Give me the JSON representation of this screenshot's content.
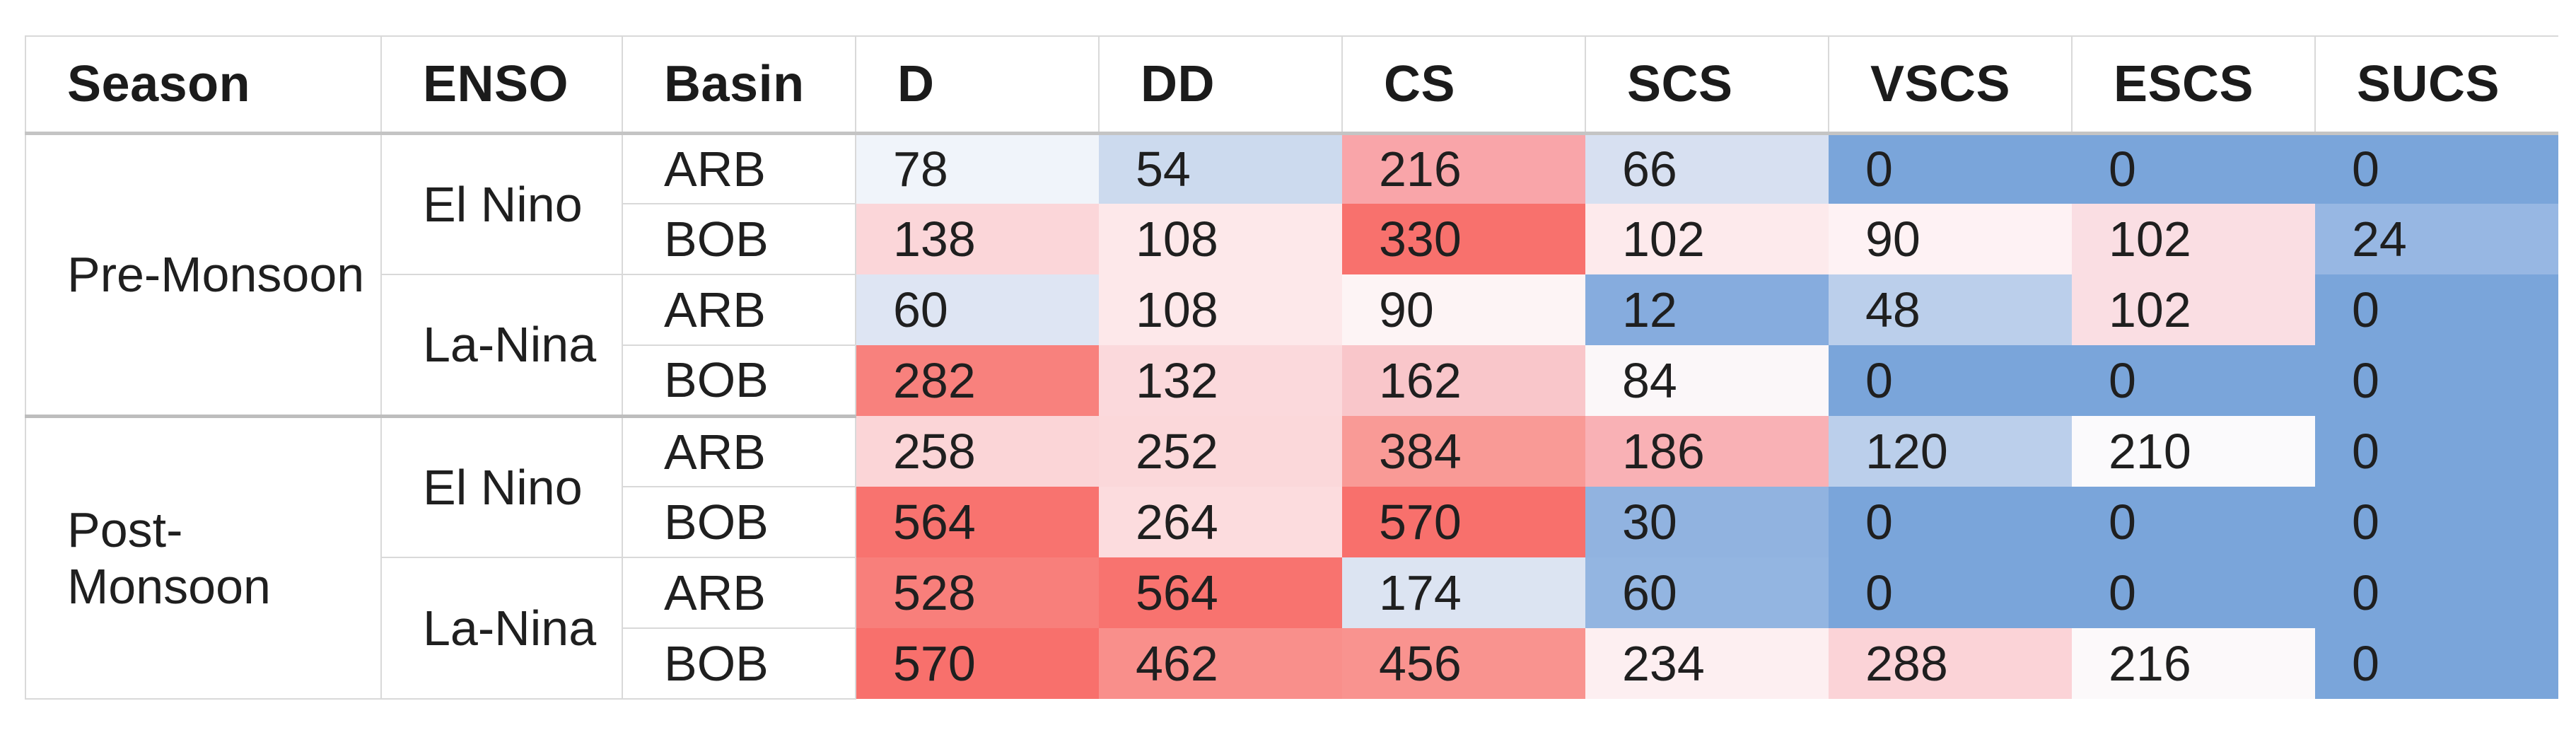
{
  "chart_data": {
    "type": "heatmap",
    "title": "",
    "columns": [
      "Season",
      "ENSO",
      "Basin",
      "D",
      "DD",
      "CS",
      "SCS",
      "VSCS",
      "ESCS",
      "SUCS"
    ],
    "rows": [
      {
        "season": "Pre-Monsoon",
        "season_span": 4,
        "enso": "El Nino",
        "enso_span": 2,
        "basin": "ARB",
        "values": [
          78,
          54,
          216,
          66,
          0,
          0,
          0
        ],
        "cell_colors": [
          "#f0f4fa",
          "#ccdaee",
          "#f9a5a9",
          "#d7e0f1",
          "#7aa5da",
          "#7aa5da",
          "#7aa5da"
        ]
      },
      {
        "basin": "BOB",
        "values": [
          138,
          108,
          330,
          102,
          90,
          102,
          24
        ],
        "cell_colors": [
          "#fbd6d9",
          "#fde8ea",
          "#f8716d",
          "#fdeaec",
          "#fef2f4",
          "#fadee3",
          "#97b7e3"
        ]
      },
      {
        "enso": "La-Nina",
        "enso_span": 2,
        "basin": "ARB",
        "values": [
          60,
          108,
          90,
          12,
          48,
          102,
          0
        ],
        "cell_colors": [
          "#dee5f3",
          "#fde8ea",
          "#fdf4f5",
          "#86acde",
          "#bbcfeb",
          "#fadee3",
          "#7aa5da"
        ]
      },
      {
        "basin": "BOB",
        "values": [
          282,
          132,
          162,
          84,
          0,
          0,
          0
        ],
        "cell_colors": [
          "#f8817d",
          "#fbd9dc",
          "#f9c6ca",
          "#fbf7f9",
          "#7aa5da",
          "#7aa5da",
          "#7aa5da"
        ]
      },
      {
        "season": "Post-Monsoon",
        "season_span": 4,
        "enso": "El Nino",
        "enso_span": 2,
        "basin": "ARB",
        "group_start": true,
        "values": [
          258,
          252,
          384,
          186,
          120,
          210,
          0
        ],
        "cell_colors": [
          "#fbd5d7",
          "#fbd8da",
          "#f99a96",
          "#f9b1b5",
          "#bbcfeb",
          "#fbfafc",
          "#7aa5da"
        ]
      },
      {
        "basin": "BOB",
        "values": [
          564,
          264,
          570,
          30,
          0,
          0,
          0
        ],
        "cell_colors": [
          "#f8736f",
          "#fcdcde",
          "#f8706c",
          "#91b3e0",
          "#7aa5da",
          "#7aa5da",
          "#7aa5da"
        ]
      },
      {
        "enso": "La-Nina",
        "enso_span": 2,
        "basin": "ARB",
        "values": [
          528,
          564,
          174,
          60,
          0,
          0,
          0
        ],
        "cell_colors": [
          "#f87f7b",
          "#f8736f",
          "#dce4f2",
          "#93b5e1",
          "#7aa5da",
          "#7aa5da",
          "#7aa5da"
        ]
      },
      {
        "basin": "BOB",
        "values": [
          570,
          462,
          456,
          234,
          288,
          216,
          0
        ],
        "cell_colors": [
          "#f8706c",
          "#f98f8b",
          "#f9938f",
          "#fdeff1",
          "#fbd3d7",
          "#fcf9fa",
          "#7aa5da"
        ]
      }
    ],
    "legend_position": "none",
    "grid": "partial",
    "colors": {
      "low_color": "#7aa5da",
      "mid_color": "#ffffff",
      "high_color": "#f8706c",
      "border_light": "#d9d9d9",
      "border_dark": "#c4c4c4",
      "text": "#1f1f1f",
      "background": "#ffffff"
    },
    "value_range": [
      0,
      570
    ]
  }
}
